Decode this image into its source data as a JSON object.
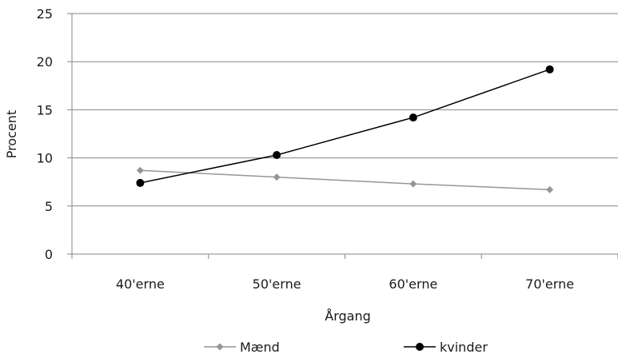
{
  "chart_data": {
    "type": "line",
    "xlabel": "Årgang",
    "ylabel": "Procent",
    "categories": [
      "40'erne",
      "50'erne",
      "60'erne",
      "70'erne"
    ],
    "ylim": [
      0,
      25
    ],
    "yticks": [
      0,
      5,
      10,
      15,
      20,
      25
    ],
    "grid": true,
    "legend_position": "bottom",
    "series": [
      {
        "name": "Mænd",
        "values": [
          8.7,
          8.0,
          7.3,
          6.7
        ],
        "color": "#969696",
        "marker": "diamond"
      },
      {
        "name": "kvinder",
        "values": [
          7.4,
          10.3,
          14.2,
          19.2
        ],
        "color": "#000000",
        "marker": "circle"
      }
    ]
  }
}
